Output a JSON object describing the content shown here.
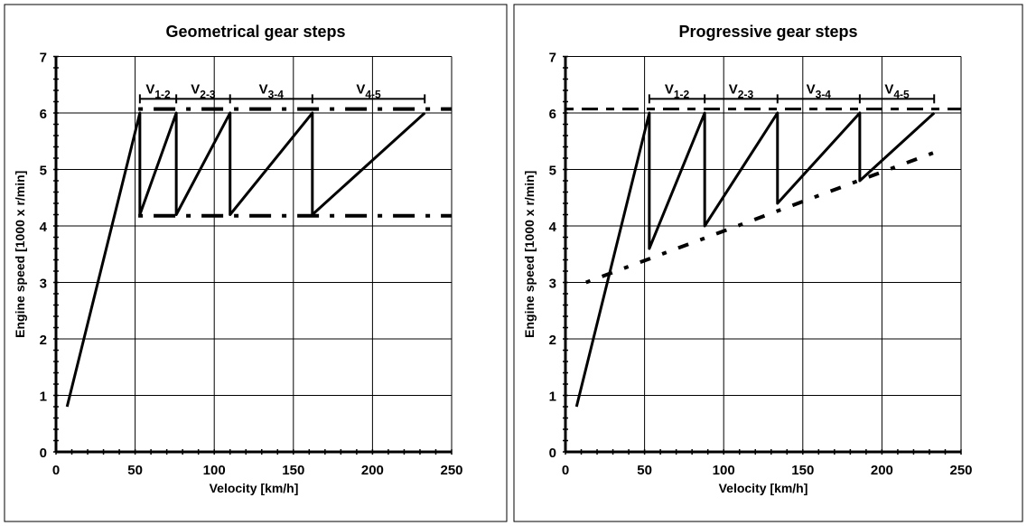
{
  "chart_data": [
    {
      "type": "line",
      "title": "Geometrical gear steps",
      "xlabel": "Velocity [km/h]",
      "ylabel": "Engine speed [1000 x r/min]",
      "xlim": [
        0,
        250
      ],
      "ylim": [
        0,
        7
      ],
      "xticks": [
        0,
        50,
        100,
        150,
        200,
        250
      ],
      "yticks": [
        0,
        1,
        2,
        3,
        4,
        5,
        6,
        7
      ],
      "grid": true,
      "series": [
        {
          "style": "solid",
          "points": [
            [
              7,
              0.8
            ],
            [
              53,
              6
            ],
            [
              53,
              4.2
            ],
            [
              76,
              6
            ],
            [
              76,
              4.2
            ],
            [
              110,
              6
            ],
            [
              110,
              4.2
            ],
            [
              162,
              6
            ],
            [
              162,
              4.2
            ],
            [
              233,
              6
            ]
          ]
        },
        {
          "style": "dash-dot",
          "points": [
            [
              52,
              6.07
            ],
            [
              250,
              6.07
            ]
          ]
        },
        {
          "style": "dash-dot",
          "points": [
            [
              52,
              4.18
            ],
            [
              250,
              4.18
            ]
          ]
        }
      ],
      "shift_brackets": {
        "y": 6.25,
        "x": [
          53,
          76,
          110,
          162,
          233
        ],
        "labels": [
          {
            "main": "V",
            "sub": "1-2"
          },
          {
            "main": "V",
            "sub": "2-3"
          },
          {
            "main": "V",
            "sub": "3-4"
          },
          {
            "main": "V",
            "sub": "4-5"
          }
        ]
      }
    },
    {
      "type": "line",
      "title": "Progressive gear steps",
      "xlabel": "Velocity [km/h]",
      "ylabel": "Engine speed [1000 x r/min]",
      "xlim": [
        0,
        250
      ],
      "ylim": [
        0,
        7
      ],
      "xticks": [
        0,
        50,
        100,
        150,
        200,
        250
      ],
      "yticks": [
        0,
        1,
        2,
        3,
        4,
        5,
        6,
        7
      ],
      "grid": true,
      "series": [
        {
          "style": "solid",
          "points": [
            [
              7,
              0.8
            ],
            [
              53,
              6
            ],
            [
              53,
              3.6
            ],
            [
              88,
              6
            ],
            [
              88,
              4.0
            ],
            [
              134,
              6
            ],
            [
              134,
              4.4
            ],
            [
              186,
              6
            ],
            [
              186,
              4.8
            ],
            [
              233,
              6
            ]
          ]
        },
        {
          "style": "dashed",
          "points": [
            [
              0,
              6.07
            ],
            [
              250,
              6.07
            ]
          ]
        },
        {
          "style": "dash-dot",
          "points": [
            [
              13,
              3.0
            ],
            [
              233,
              5.3
            ]
          ]
        }
      ],
      "shift_brackets": {
        "y": 6.25,
        "x": [
          53,
          88,
          134,
          186,
          233
        ],
        "labels": [
          {
            "main": "V",
            "sub": "1-2"
          },
          {
            "main": "V",
            "sub": "2-3"
          },
          {
            "main": "V",
            "sub": "3-4"
          },
          {
            "main": "V",
            "sub": "4-5"
          }
        ]
      }
    }
  ]
}
